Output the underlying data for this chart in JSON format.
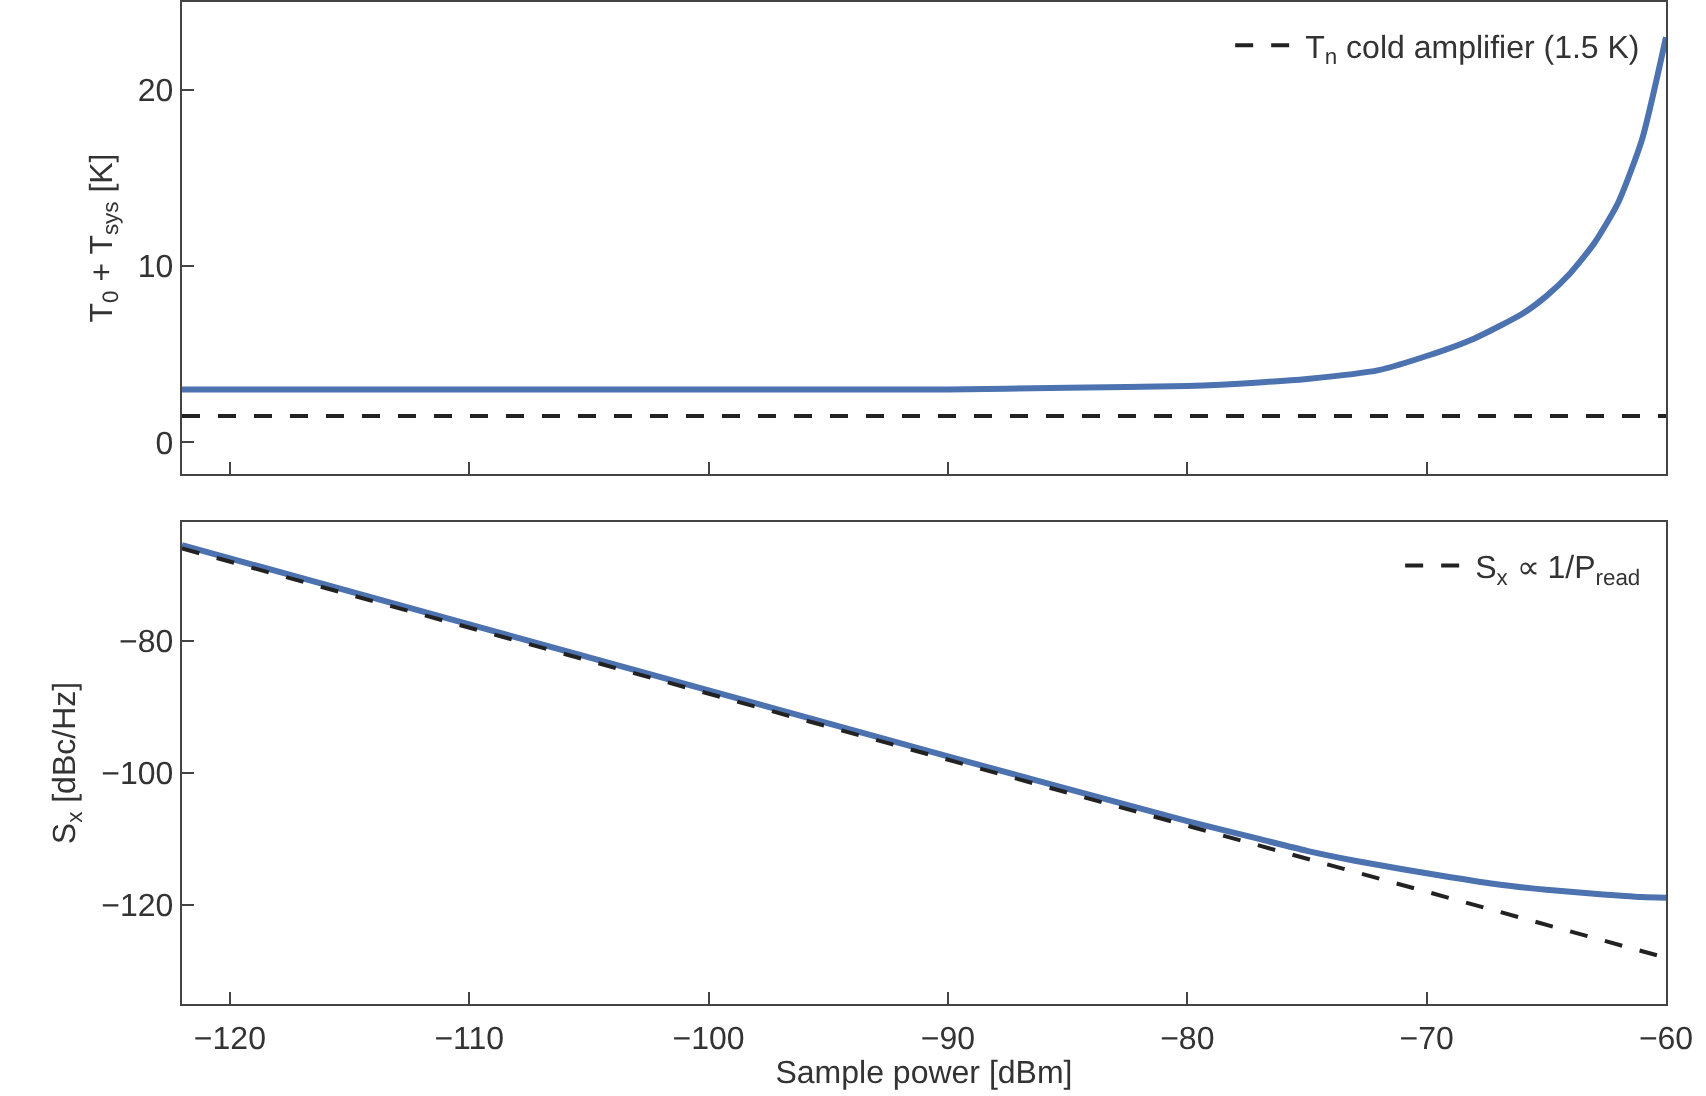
{
  "chart_data": [
    {
      "type": "line",
      "ylabel": "T$_{0}$ + T$_{sys}$ [K]",
      "xlim": [
        -122,
        -60
      ],
      "xticks": [
        -120,
        -110,
        -100,
        -90,
        -80,
        -70,
        -60
      ],
      "ylim": [
        -1.8,
        25
      ],
      "yticks": [
        0,
        10,
        20
      ],
      "tick_labels": "y",
      "legend": "top right",
      "marker": "none",
      "series": [
        {
          "color": "#4c72b0",
          "line_style": "solid",
          "x": [
            -122,
            -115,
            -110,
            -100,
            -90,
            -85,
            -80,
            -77,
            -75,
            -72,
            -70,
            -68,
            -66,
            -65,
            -64,
            -63,
            -62,
            -61,
            -60
          ],
          "values": [
            3.0,
            3.0,
            3.0,
            3.0,
            3.0,
            3.1,
            3.2,
            3.4,
            3.6,
            4.1,
            4.9,
            5.9,
            7.3,
            8.3,
            9.6,
            11.3,
            13.6,
            17.2,
            23.0
          ]
        },
        {
          "name": "T$_{n}$ cold amplifier (1.5 K)",
          "color": "#222222",
          "line_style": "dashed",
          "x": [
            -122,
            -60
          ],
          "values": [
            1.5,
            1.5
          ]
        }
      ]
    },
    {
      "type": "line",
      "xlabel": "Sample power [dBm]",
      "ylabel": "S$_{x}$ [dBc/Hz]",
      "xlim": [
        -122,
        -60
      ],
      "xticks": [
        -120,
        -110,
        -100,
        -90,
        -80,
        -70,
        -60
      ],
      "ylim": [
        -135,
        -62
      ],
      "yticks": [
        -80,
        -100,
        -120
      ],
      "legend": "top right",
      "marker": "none",
      "series": [
        {
          "color": "#4c72b0",
          "line_style": "solid",
          "x": [
            -122,
            -110,
            -100,
            -90,
            -80,
            -77,
            -75,
            -73,
            -71,
            -69,
            -67,
            -65,
            -63,
            -61,
            -60
          ],
          "values": [
            -65.5,
            -77.5,
            -87.5,
            -97.5,
            -107.3,
            -110,
            -111.8,
            -113.3,
            -114.6,
            -115.8,
            -116.9,
            -117.7,
            -118.3,
            -118.8,
            -118.9
          ]
        },
        {
          "name": "S$_{x}$ ∝ 1/P$_{read}$",
          "color": "#222222",
          "line_style": "dashed",
          "x": [
            -122,
            -60
          ],
          "values": [
            -66,
            -128
          ]
        }
      ]
    }
  ]
}
